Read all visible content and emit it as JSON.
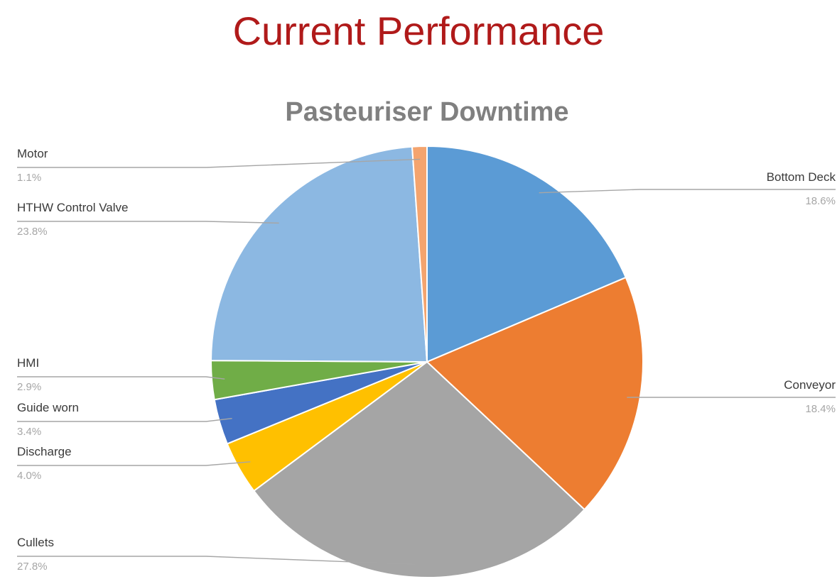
{
  "slide": {
    "title": "Current Performance"
  },
  "chart_data": {
    "type": "pie",
    "title": "Pasteuriser Downtime",
    "slices": [
      {
        "label": "Bottom Deck",
        "value": 18.6,
        "value_label": "18.6%",
        "color": "#5b9bd5"
      },
      {
        "label": "Conveyor",
        "value": 18.4,
        "value_label": "18.4%",
        "color": "#ed7d31"
      },
      {
        "label": "Cullets",
        "value": 27.8,
        "value_label": "27.8%",
        "color": "#a5a5a5"
      },
      {
        "label": "Discharge",
        "value": 4.0,
        "value_label": "4.0%",
        "color": "#ffc000"
      },
      {
        "label": "Guide worn",
        "value": 3.4,
        "value_label": "3.4%",
        "color": "#4472c4"
      },
      {
        "label": "HMI",
        "value": 2.9,
        "value_label": "2.9%",
        "color": "#70ad47"
      },
      {
        "label": "HTHW Control Valve",
        "value": 23.8,
        "value_label": "23.8%",
        "color": "#8cb8e2"
      },
      {
        "label": "Motor",
        "value": 1.1,
        "value_label": "1.1%",
        "color": "#f4a46e"
      }
    ],
    "legend": "none",
    "labels": "outside with leader lines"
  }
}
